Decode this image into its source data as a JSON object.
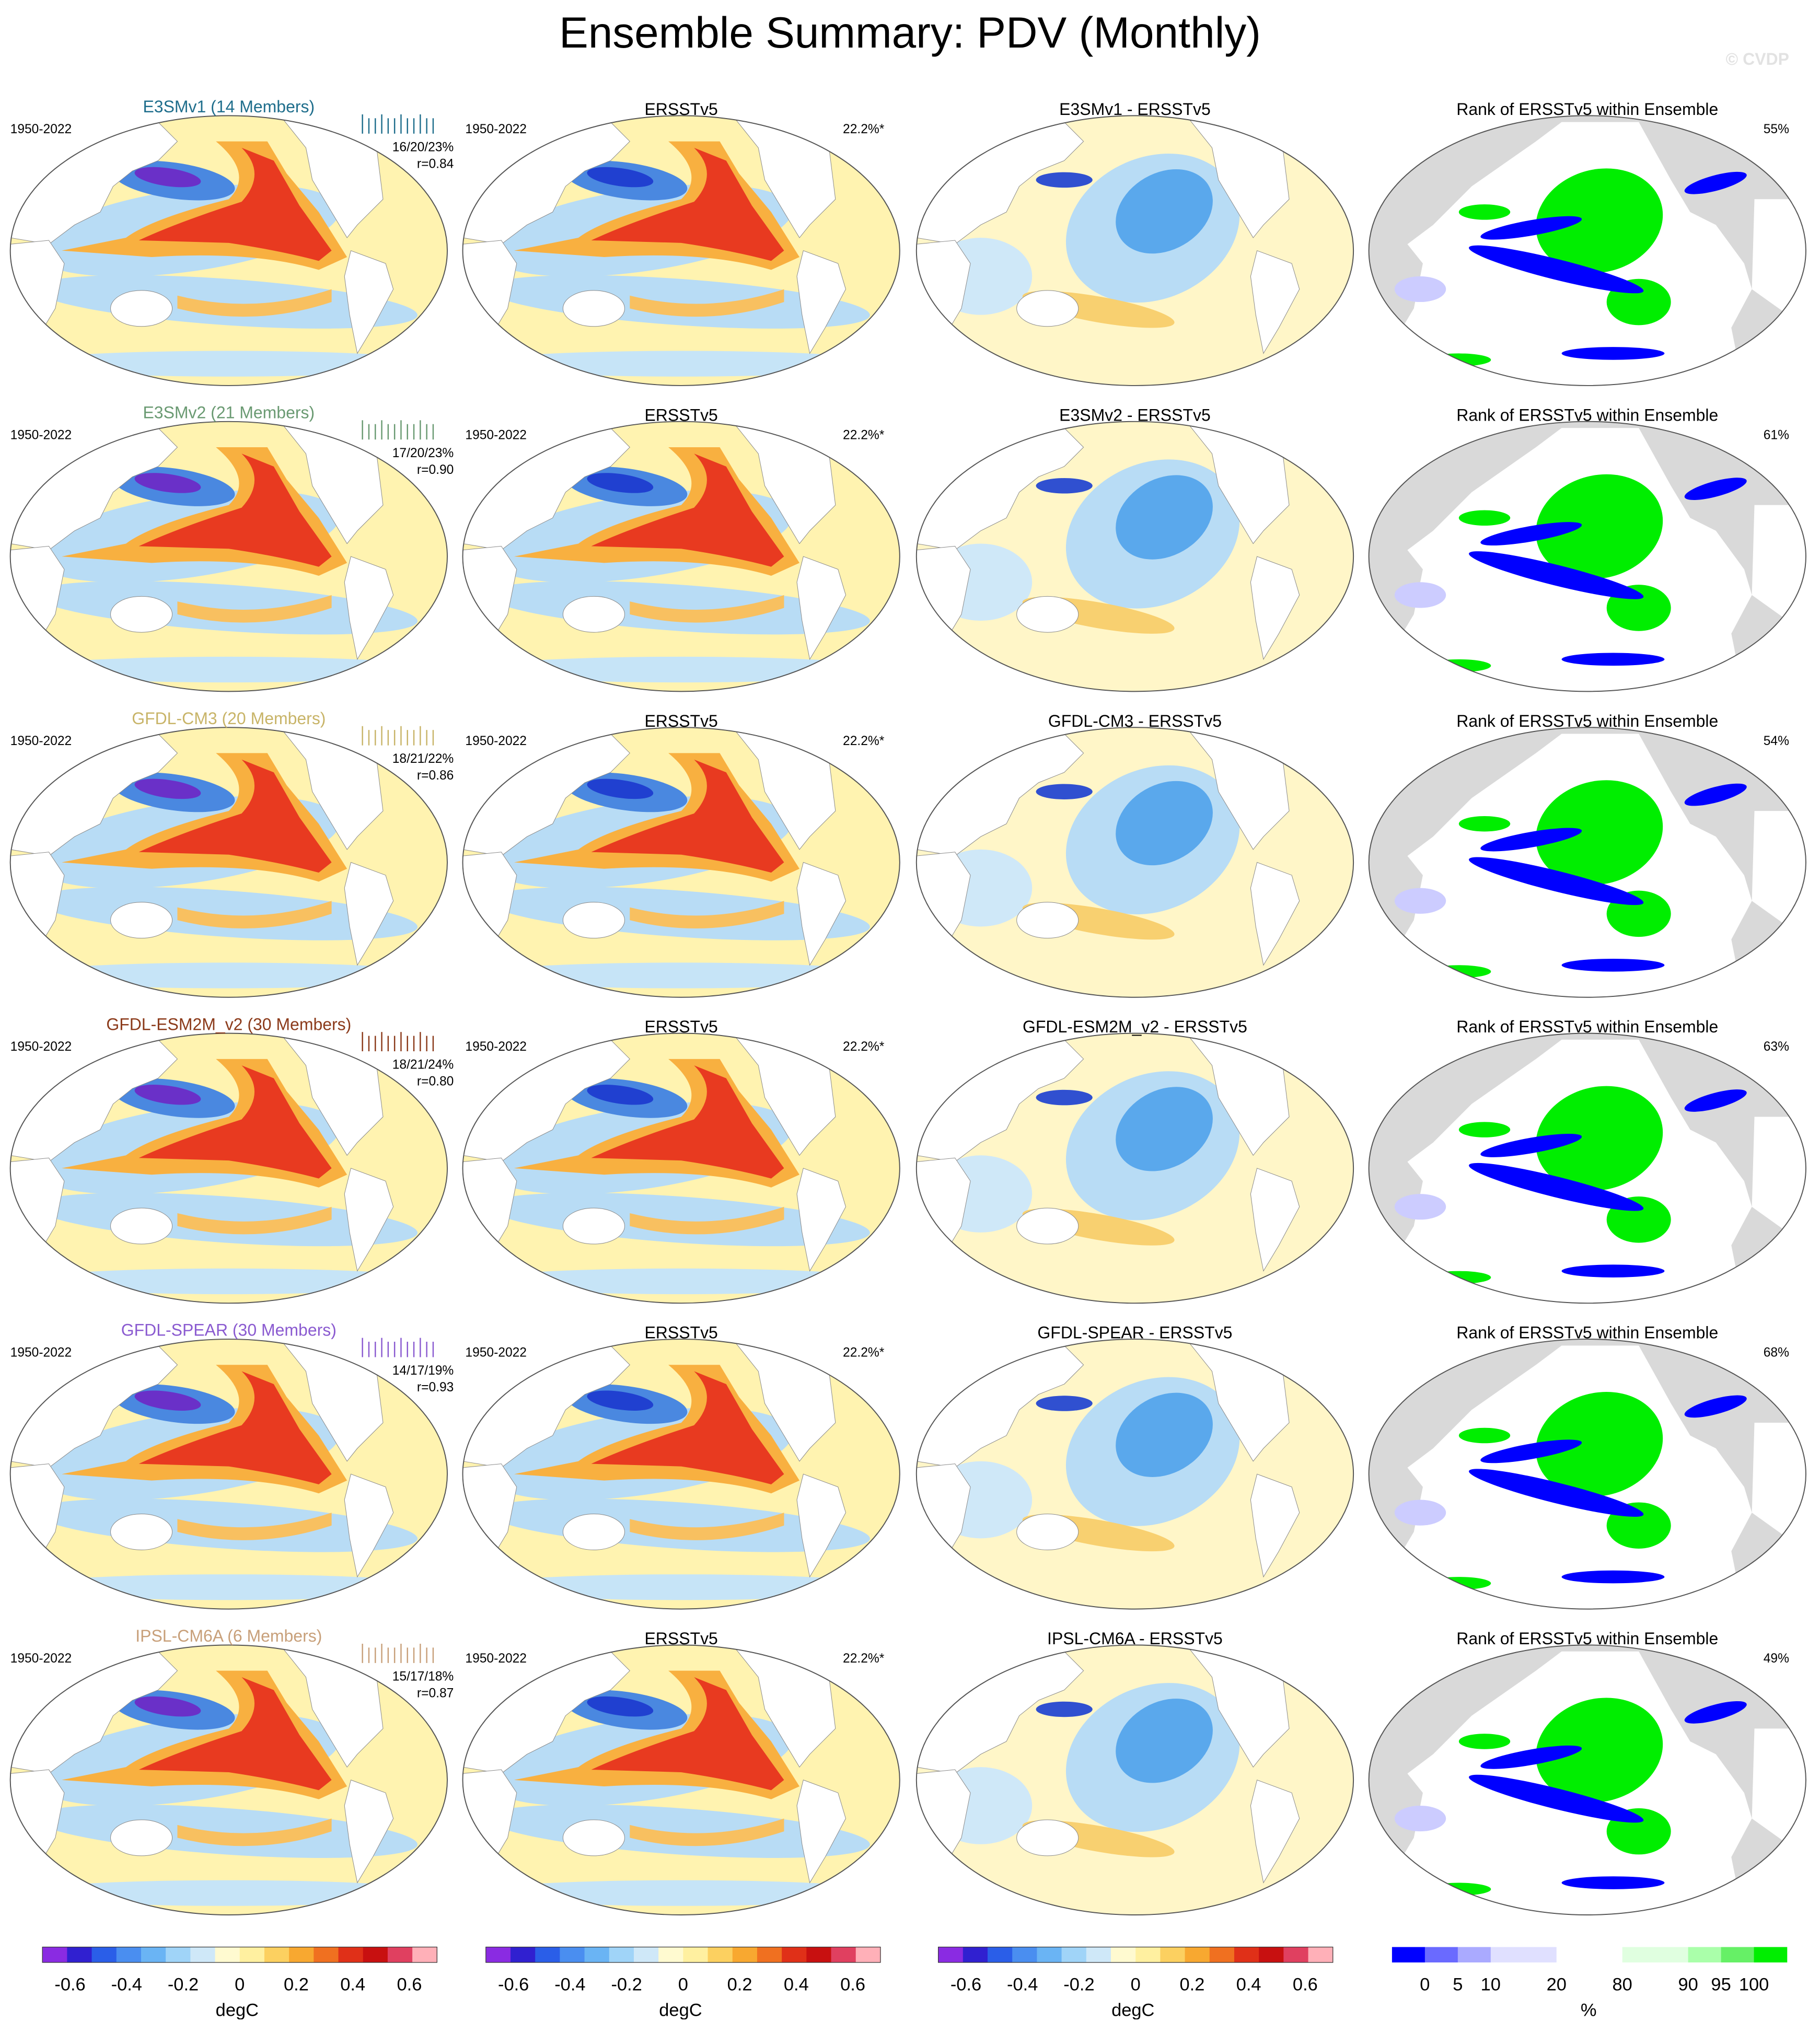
{
  "title": "Ensemble Summary: PDV (Monthly)",
  "watermark": "© CVDP",
  "rows": [
    {
      "model_title": "E3SMv1 (14 Members)",
      "color": "#1f6e8c",
      "period": "1950-2022",
      "stats": "16/20/23%",
      "r": "r=0.84",
      "obs_title": "ERSSTv5",
      "obs_period": "1950-2022",
      "obs_pct": "22.2%*",
      "diff_title": "E3SMv1 - ERSSTv5",
      "rank_title": "Rank of ERSSTv5 within Ensemble",
      "rank_pct": "55%"
    },
    {
      "model_title": "E3SMv2 (21 Members)",
      "color": "#6a9a72",
      "period": "1950-2022",
      "stats": "17/20/23%",
      "r": "r=0.90",
      "obs_title": "ERSSTv5",
      "obs_period": "1950-2022",
      "obs_pct": "22.2%*",
      "diff_title": "E3SMv2 - ERSSTv5",
      "rank_title": "Rank of ERSSTv5 within Ensemble",
      "rank_pct": "61%"
    },
    {
      "model_title": "GFDL-CM3 (20 Members)",
      "color": "#c8b468",
      "period": "1950-2022",
      "stats": "18/21/22%",
      "r": "r=0.86",
      "obs_title": "ERSSTv5",
      "obs_period": "1950-2022",
      "obs_pct": "22.2%*",
      "diff_title": "GFDL-CM3 - ERSSTv5",
      "rank_title": "Rank of ERSSTv5 within Ensemble",
      "rank_pct": "54%"
    },
    {
      "model_title": "GFDL-ESM2M_v2 (30 Members)",
      "color": "#8b3a1a",
      "period": "1950-2022",
      "stats": "18/21/24%",
      "r": "r=0.80",
      "obs_title": "ERSSTv5",
      "obs_period": "1950-2022",
      "obs_pct": "22.2%*",
      "diff_title": "GFDL-ESM2M_v2 - ERSSTv5",
      "rank_title": "Rank of ERSSTv5 within Ensemble",
      "rank_pct": "63%"
    },
    {
      "model_title": "GFDL-SPEAR (30 Members)",
      "color": "#8a5ad0",
      "period": "1950-2022",
      "stats": "14/17/19%",
      "r": "r=0.93",
      "obs_title": "ERSSTv5",
      "obs_period": "1950-2022",
      "obs_pct": "22.2%*",
      "diff_title": "GFDL-SPEAR - ERSSTv5",
      "rank_title": "Rank of ERSSTv5 within Ensemble",
      "rank_pct": "68%"
    },
    {
      "model_title": "IPSL-CM6A (6 Members)",
      "color": "#c8a07a",
      "period": "1950-2022",
      "stats": "15/17/18%",
      "r": "r=0.87",
      "obs_title": "ERSSTv5",
      "obs_period": "1950-2022",
      "obs_pct": "22.2%*",
      "diff_title": "IPSL-CM6A - ERSSTv5",
      "rank_title": "Rank of ERSSTv5 within Ensemble",
      "rank_pct": "49%"
    }
  ],
  "colorbars": {
    "temperature": {
      "ticks": [
        "-0.6",
        "-0.4",
        "-0.2",
        "0",
        "0.2",
        "0.4",
        "0.6"
      ],
      "unit": "degC"
    },
    "rank": {
      "ticks": [
        "0",
        "5",
        "10",
        "20",
        "80",
        "90",
        "95",
        "100"
      ],
      "unit": "%"
    }
  }
}
